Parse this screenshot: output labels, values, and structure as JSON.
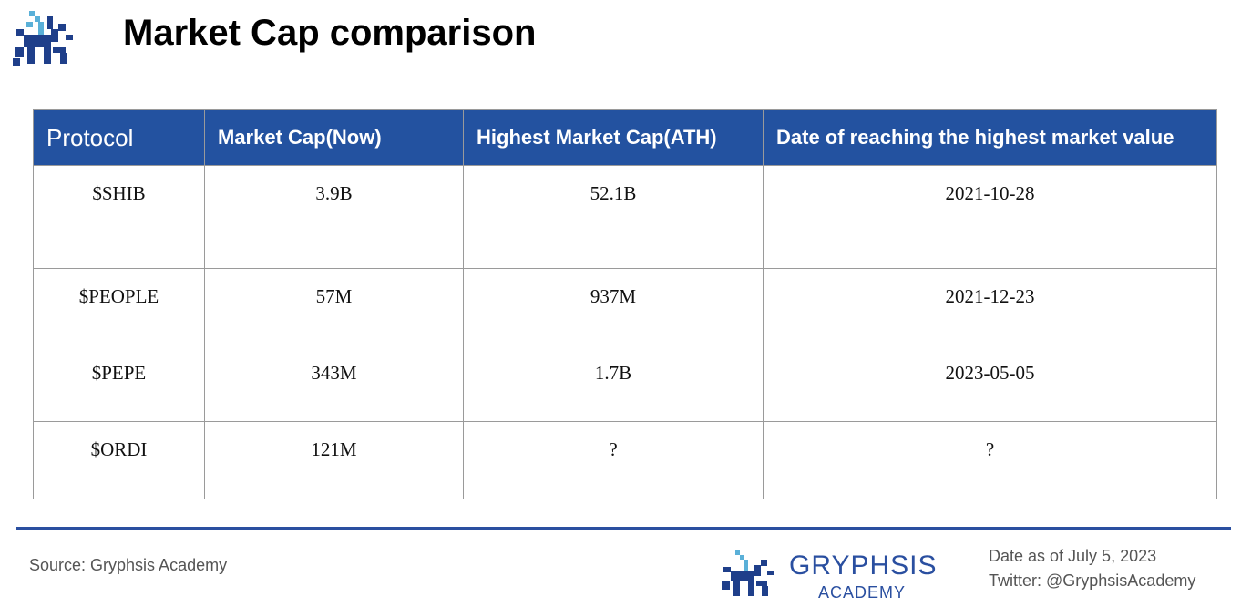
{
  "header": {
    "title": "Market Cap comparison"
  },
  "table": {
    "columns": [
      "Protocol",
      "Market Cap(Now)",
      "Highest Market Cap(ATH)",
      "Date of reaching the highest market value"
    ],
    "rows": [
      [
        "$SHIB",
        "3.9B",
        "52.1B",
        "2021-10-28"
      ],
      [
        "$PEOPLE",
        "57M",
        "937M",
        "2021-12-23"
      ],
      [
        "$PEPE",
        "343M",
        "1.7B",
        "2023-05-05"
      ],
      [
        "$ORDI",
        "121M",
        "?",
        "?"
      ]
    ]
  },
  "footer": {
    "source": "Source: Gryphsis Academy",
    "brand": "GRYPHSIS",
    "brand_sub": "ACADEMY",
    "date": "Date as of July 5, 2023",
    "twitter": "Twitter: @GryphsisAcademy"
  }
}
